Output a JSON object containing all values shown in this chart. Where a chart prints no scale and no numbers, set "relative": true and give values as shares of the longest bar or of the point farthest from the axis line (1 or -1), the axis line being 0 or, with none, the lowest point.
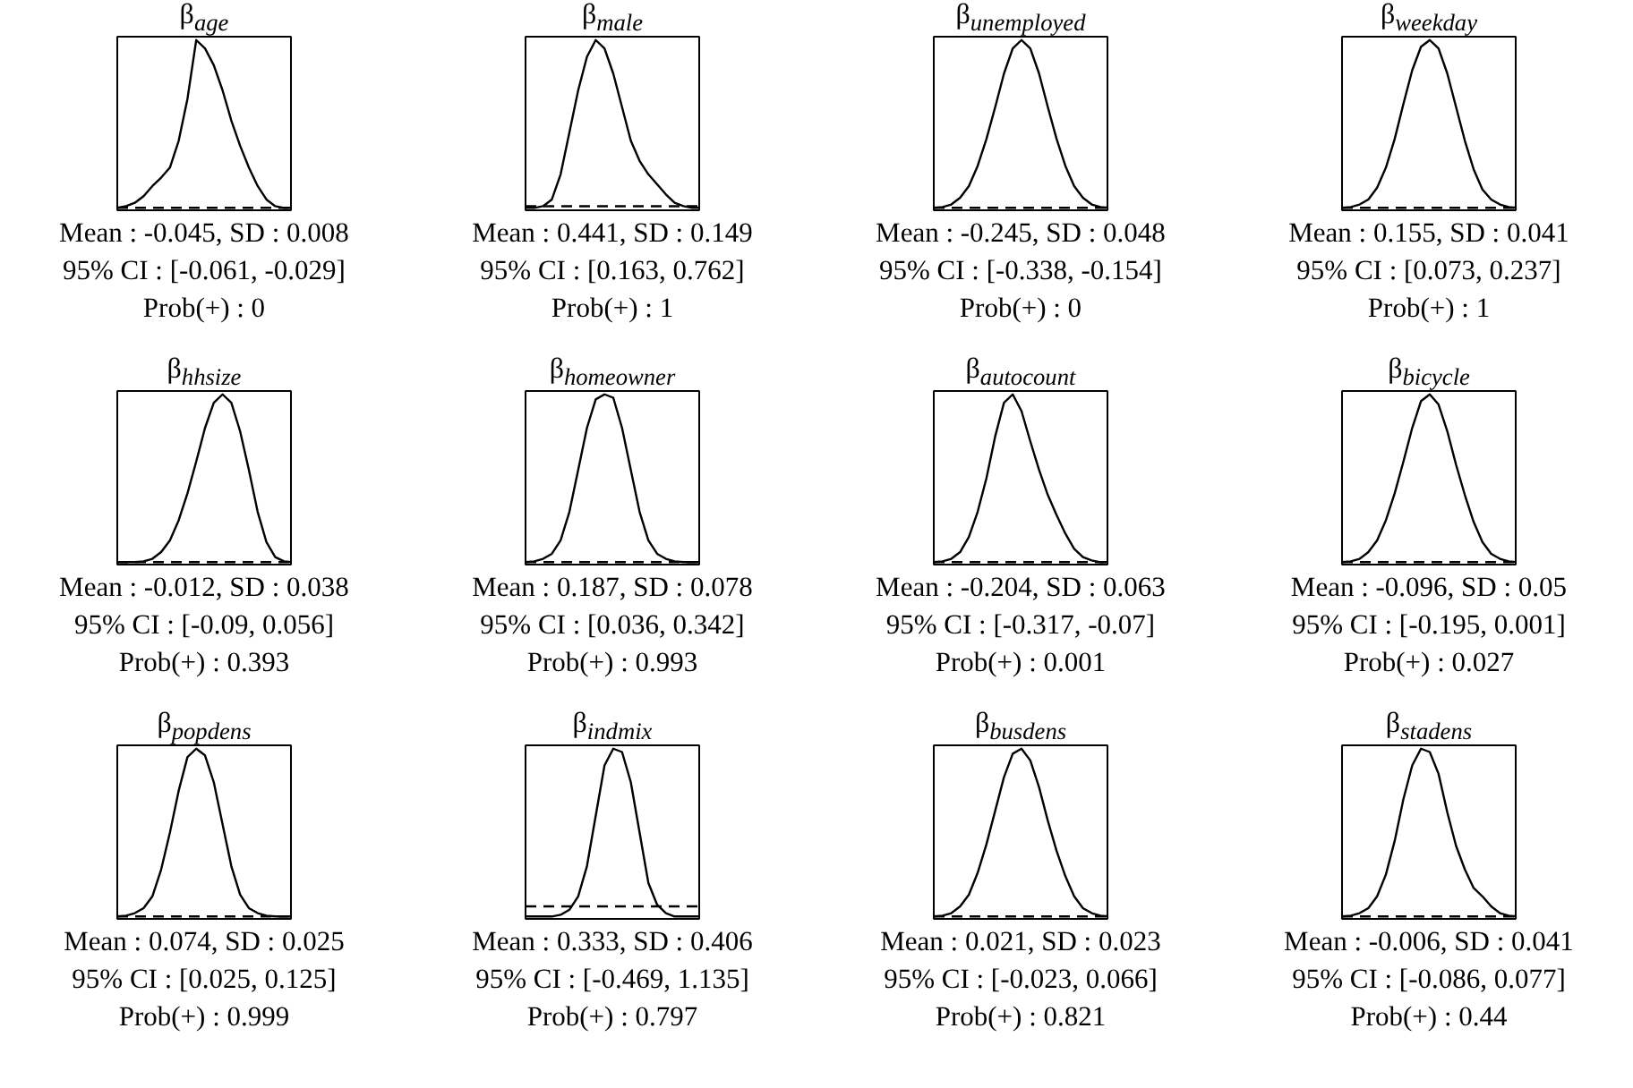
{
  "chart_data": [
    {
      "type": "line",
      "title": "β$_{age}$",
      "relative": true,
      "grid": false,
      "categories": [
        null,
        null,
        null,
        null,
        null,
        null,
        null,
        null,
        null,
        null,
        null,
        null,
        null,
        null,
        null,
        null,
        null,
        null,
        null,
        null,
        null
      ],
      "series": [
        {
          "color": "#000000",
          "values": [
            0,
            0.01,
            0.03,
            0.07,
            0.13,
            0.18,
            0.24,
            0.4,
            0.65,
            1,
            0.95,
            0.85,
            0.7,
            0.52,
            0.37,
            0.24,
            0.13,
            0.05,
            0.01,
            0,
            0
          ]
        },
        {
          "color": "#000000",
          "line_style": "dashed",
          "values": [
            0,
            0,
            0,
            0,
            0,
            0,
            0,
            0,
            0,
            0,
            0,
            0,
            0,
            0,
            0,
            0,
            0,
            0,
            0,
            0,
            0
          ]
        }
      ],
      "annotations": [
        "Mean : -0.045, SD : 0.008",
        "95% CI : [-0.061, -0.029]",
        "Prob(+) : 0"
      ]
    },
    {
      "type": "line",
      "title": "β$_{male}$",
      "relative": true,
      "grid": false,
      "categories": [
        null,
        null,
        null,
        null,
        null,
        null,
        null,
        null,
        null,
        null,
        null,
        null,
        null,
        null,
        null,
        null,
        null,
        null,
        null,
        null,
        null
      ],
      "series": [
        {
          "color": "#000000",
          "values": [
            0,
            0,
            0.01,
            0.05,
            0.2,
            0.45,
            0.7,
            0.9,
            1,
            0.95,
            0.8,
            0.6,
            0.4,
            0.28,
            0.2,
            0.14,
            0.08,
            0.03,
            0.01,
            0,
            0
          ]
        },
        {
          "color": "#000000",
          "line_style": "dashed",
          "values": [
            0.01,
            0.01,
            0.01,
            0.01,
            0.01,
            0.01,
            0.01,
            0.01,
            0.01,
            0.01,
            0.01,
            0.01,
            0.01,
            0.01,
            0.01,
            0.01,
            0.01,
            0.01,
            0.01,
            0.01,
            0.01
          ]
        }
      ],
      "annotations": [
        "Mean : 0.441, SD : 0.149",
        "95% CI : [0.163, 0.762]",
        "Prob(+) : 1"
      ]
    },
    {
      "type": "line",
      "title": "β$_{unemployed}$",
      "relative": true,
      "grid": false,
      "categories": [
        null,
        null,
        null,
        null,
        null,
        null,
        null,
        null,
        null,
        null,
        null,
        null,
        null,
        null,
        null,
        null,
        null,
        null,
        null,
        null,
        null
      ],
      "series": [
        {
          "color": "#000000",
          "values": [
            0,
            0.005,
            0.02,
            0.06,
            0.13,
            0.25,
            0.41,
            0.6,
            0.8,
            0.95,
            1,
            0.95,
            0.8,
            0.6,
            0.41,
            0.25,
            0.13,
            0.06,
            0.02,
            0.005,
            0
          ]
        },
        {
          "color": "#000000",
          "line_style": "dashed",
          "values": [
            0,
            0,
            0,
            0,
            0,
            0,
            0,
            0,
            0,
            0,
            0,
            0,
            0,
            0,
            0,
            0,
            0,
            0,
            0,
            0,
            0
          ]
        }
      ],
      "annotations": [
        "Mean : -0.245, SD : 0.048",
        "95% CI : [-0.338, -0.154]",
        "Prob(+) : 0"
      ]
    },
    {
      "type": "line",
      "title": "β$_{weekday}$",
      "relative": true,
      "grid": false,
      "categories": [
        null,
        null,
        null,
        null,
        null,
        null,
        null,
        null,
        null,
        null,
        null,
        null,
        null,
        null,
        null,
        null,
        null,
        null,
        null,
        null,
        null
      ],
      "series": [
        {
          "color": "#000000",
          "values": [
            0,
            0.005,
            0.02,
            0.05,
            0.12,
            0.24,
            0.41,
            0.62,
            0.82,
            0.96,
            1,
            0.95,
            0.8,
            0.6,
            0.4,
            0.23,
            0.11,
            0.05,
            0.02,
            0.005,
            0
          ]
        },
        {
          "color": "#000000",
          "line_style": "dashed",
          "values": [
            0,
            0,
            0,
            0,
            0,
            0,
            0,
            0,
            0,
            0,
            0,
            0,
            0,
            0,
            0,
            0,
            0,
            0,
            0,
            0,
            0
          ]
        }
      ],
      "annotations": [
        "Mean : 0.155, SD : 0.041",
        "95% CI : [0.073, 0.237]",
        "Prob(+) : 1"
      ]
    },
    {
      "type": "line",
      "title": "β$_{hhsize}$",
      "relative": true,
      "grid": false,
      "categories": [
        null,
        null,
        null,
        null,
        null,
        null,
        null,
        null,
        null,
        null,
        null,
        null,
        null,
        null,
        null,
        null,
        null,
        null,
        null,
        null,
        null
      ],
      "series": [
        {
          "color": "#000000",
          "values": [
            0,
            0,
            0,
            0.005,
            0.02,
            0.06,
            0.13,
            0.25,
            0.41,
            0.6,
            0.8,
            0.95,
            1,
            0.95,
            0.78,
            0.55,
            0.3,
            0.12,
            0.03,
            0.005,
            0
          ]
        },
        {
          "color": "#000000",
          "line_style": "dashed",
          "values": [
            0,
            0,
            0,
            0,
            0,
            0,
            0,
            0,
            0,
            0,
            0,
            0,
            0,
            0,
            0,
            0,
            0,
            0,
            0,
            0,
            0
          ]
        }
      ],
      "annotations": [
        "Mean : -0.012, SD : 0.038",
        "95% CI : [-0.09, 0.056]",
        "Prob(+) : 0.393"
      ]
    },
    {
      "type": "line",
      "title": "β$_{homeowner}$",
      "relative": true,
      "grid": false,
      "categories": [
        null,
        null,
        null,
        null,
        null,
        null,
        null,
        null,
        null,
        null,
        null,
        null,
        null,
        null,
        null,
        null,
        null,
        null,
        null,
        null,
        null
      ],
      "series": [
        {
          "color": "#000000",
          "values": [
            0,
            0.005,
            0.02,
            0.05,
            0.13,
            0.3,
            0.55,
            0.8,
            0.97,
            1,
            0.98,
            0.8,
            0.55,
            0.3,
            0.13,
            0.05,
            0.02,
            0.005,
            0,
            0,
            0
          ]
        },
        {
          "color": "#000000",
          "line_style": "dashed",
          "values": [
            0,
            0,
            0,
            0,
            0,
            0,
            0,
            0,
            0,
            0,
            0,
            0,
            0,
            0,
            0,
            0,
            0,
            0,
            0,
            0,
            0
          ]
        }
      ],
      "annotations": [
        "Mean : 0.187, SD : 0.078",
        "95% CI : [0.036, 0.342]",
        "Prob(+) : 0.993"
      ]
    },
    {
      "type": "line",
      "title": "β$_{autocount}$",
      "relative": true,
      "grid": false,
      "categories": [
        null,
        null,
        null,
        null,
        null,
        null,
        null,
        null,
        null,
        null,
        null,
        null,
        null,
        null,
        null,
        null,
        null,
        null,
        null,
        null,
        null
      ],
      "series": [
        {
          "color": "#000000",
          "values": [
            0,
            0.005,
            0.02,
            0.06,
            0.15,
            0.3,
            0.5,
            0.75,
            0.95,
            1,
            0.9,
            0.72,
            0.55,
            0.4,
            0.28,
            0.17,
            0.08,
            0.03,
            0.01,
            0,
            0
          ]
        },
        {
          "color": "#000000",
          "line_style": "dashed",
          "values": [
            0,
            0,
            0,
            0,
            0,
            0,
            0,
            0,
            0,
            0,
            0,
            0,
            0,
            0,
            0,
            0,
            0,
            0,
            0,
            0,
            0
          ]
        }
      ],
      "annotations": [
        "Mean : -0.204, SD : 0.063",
        "95% CI : [-0.317, -0.07]",
        "Prob(+) : 0.001"
      ]
    },
    {
      "type": "line",
      "title": "β$_{bicycle}$",
      "relative": true,
      "grid": false,
      "categories": [
        null,
        null,
        null,
        null,
        null,
        null,
        null,
        null,
        null,
        null,
        null,
        null,
        null,
        null,
        null,
        null,
        null,
        null,
        null,
        null,
        null
      ],
      "series": [
        {
          "color": "#000000",
          "values": [
            0,
            0.005,
            0.02,
            0.06,
            0.13,
            0.25,
            0.41,
            0.6,
            0.8,
            0.96,
            1,
            0.94,
            0.78,
            0.58,
            0.4,
            0.24,
            0.12,
            0.05,
            0.02,
            0.005,
            0
          ]
        },
        {
          "color": "#000000",
          "line_style": "dashed",
          "values": [
            0,
            0,
            0,
            0,
            0,
            0,
            0,
            0,
            0,
            0,
            0,
            0,
            0,
            0,
            0,
            0,
            0,
            0,
            0,
            0,
            0
          ]
        }
      ],
      "annotations": [
        "Mean : -0.096, SD : 0.05",
        "95% CI : [-0.195, 0.001]",
        "Prob(+) : 0.027"
      ]
    },
    {
      "type": "line",
      "title": "β$_{popdens}$",
      "relative": true,
      "grid": false,
      "categories": [
        null,
        null,
        null,
        null,
        null,
        null,
        null,
        null,
        null,
        null,
        null,
        null,
        null,
        null,
        null,
        null,
        null,
        null,
        null,
        null,
        null
      ],
      "series": [
        {
          "color": "#000000",
          "values": [
            0,
            0.005,
            0.02,
            0.05,
            0.12,
            0.28,
            0.5,
            0.75,
            0.95,
            1,
            0.96,
            0.8,
            0.55,
            0.3,
            0.13,
            0.05,
            0.02,
            0.005,
            0,
            0,
            0
          ]
        },
        {
          "color": "#000000",
          "line_style": "dashed",
          "values": [
            0,
            0,
            0,
            0,
            0,
            0,
            0,
            0,
            0,
            0,
            0,
            0,
            0,
            0,
            0,
            0,
            0,
            0,
            0,
            0,
            0
          ]
        }
      ],
      "annotations": [
        "Mean : 0.074, SD : 0.025",
        "95% CI : [0.025, 0.125]",
        "Prob(+) : 0.999"
      ]
    },
    {
      "type": "line",
      "title": "β$_{indmix}$",
      "relative": true,
      "grid": false,
      "categories": [
        null,
        null,
        null,
        null,
        null,
        null,
        null,
        null,
        null,
        null,
        null,
        null,
        null,
        null,
        null,
        null,
        null,
        null,
        null,
        null,
        null
      ],
      "series": [
        {
          "color": "#000000",
          "values": [
            0,
            0,
            0,
            0,
            0.01,
            0.04,
            0.12,
            0.3,
            0.6,
            0.9,
            1,
            0.98,
            0.8,
            0.5,
            0.2,
            0.07,
            0.02,
            0,
            0,
            0,
            0
          ]
        },
        {
          "color": "#000000",
          "line_style": "dashed",
          "values": [
            0.06,
            0.06,
            0.06,
            0.06,
            0.06,
            0.06,
            0.06,
            0.06,
            0.06,
            0.06,
            0.06,
            0.06,
            0.06,
            0.06,
            0.06,
            0.06,
            0.06,
            0.06,
            0.06,
            0.06,
            0.06
          ]
        }
      ],
      "annotations": [
        "Mean : 0.333, SD : 0.406",
        "95% CI : [-0.469, 1.135]",
        "Prob(+) : 0.797"
      ]
    },
    {
      "type": "line",
      "title": "β$_{busdens}$",
      "relative": true,
      "grid": false,
      "categories": [
        null,
        null,
        null,
        null,
        null,
        null,
        null,
        null,
        null,
        null,
        null,
        null,
        null,
        null,
        null,
        null,
        null,
        null,
        null,
        null,
        null
      ],
      "series": [
        {
          "color": "#000000",
          "values": [
            0,
            0.005,
            0.02,
            0.06,
            0.13,
            0.26,
            0.43,
            0.63,
            0.83,
            0.97,
            1,
            0.93,
            0.77,
            0.57,
            0.39,
            0.24,
            0.12,
            0.05,
            0.02,
            0.005,
            0
          ]
        },
        {
          "color": "#000000",
          "line_style": "dashed",
          "values": [
            0,
            0,
            0,
            0,
            0,
            0,
            0,
            0,
            0,
            0,
            0,
            0,
            0,
            0,
            0,
            0,
            0,
            0,
            0,
            0,
            0
          ]
        }
      ],
      "annotations": [
        "Mean : 0.021, SD : 0.023",
        "95% CI : [-0.023, 0.066]",
        "Prob(+) : 0.821"
      ]
    },
    {
      "type": "line",
      "title": "β$_{stadens}$",
      "relative": true,
      "grid": false,
      "categories": [
        null,
        null,
        null,
        null,
        null,
        null,
        null,
        null,
        null,
        null,
        null,
        null,
        null,
        null,
        null,
        null,
        null,
        null,
        null,
        null,
        null
      ],
      "series": [
        {
          "color": "#000000",
          "values": [
            0,
            0.005,
            0.02,
            0.05,
            0.12,
            0.25,
            0.45,
            0.7,
            0.9,
            1,
            0.98,
            0.85,
            0.62,
            0.42,
            0.28,
            0.17,
            0.12,
            0.06,
            0.02,
            0.005,
            0
          ]
        },
        {
          "color": "#000000",
          "line_style": "dashed",
          "values": [
            0,
            0,
            0,
            0,
            0,
            0,
            0,
            0,
            0,
            0,
            0,
            0,
            0,
            0,
            0,
            0,
            0,
            0,
            0,
            0,
            0
          ]
        }
      ],
      "annotations": [
        "Mean : -0.006, SD : 0.041",
        "95% CI : [-0.086, 0.077]",
        "Prob(+) : 0.44"
      ]
    }
  ]
}
